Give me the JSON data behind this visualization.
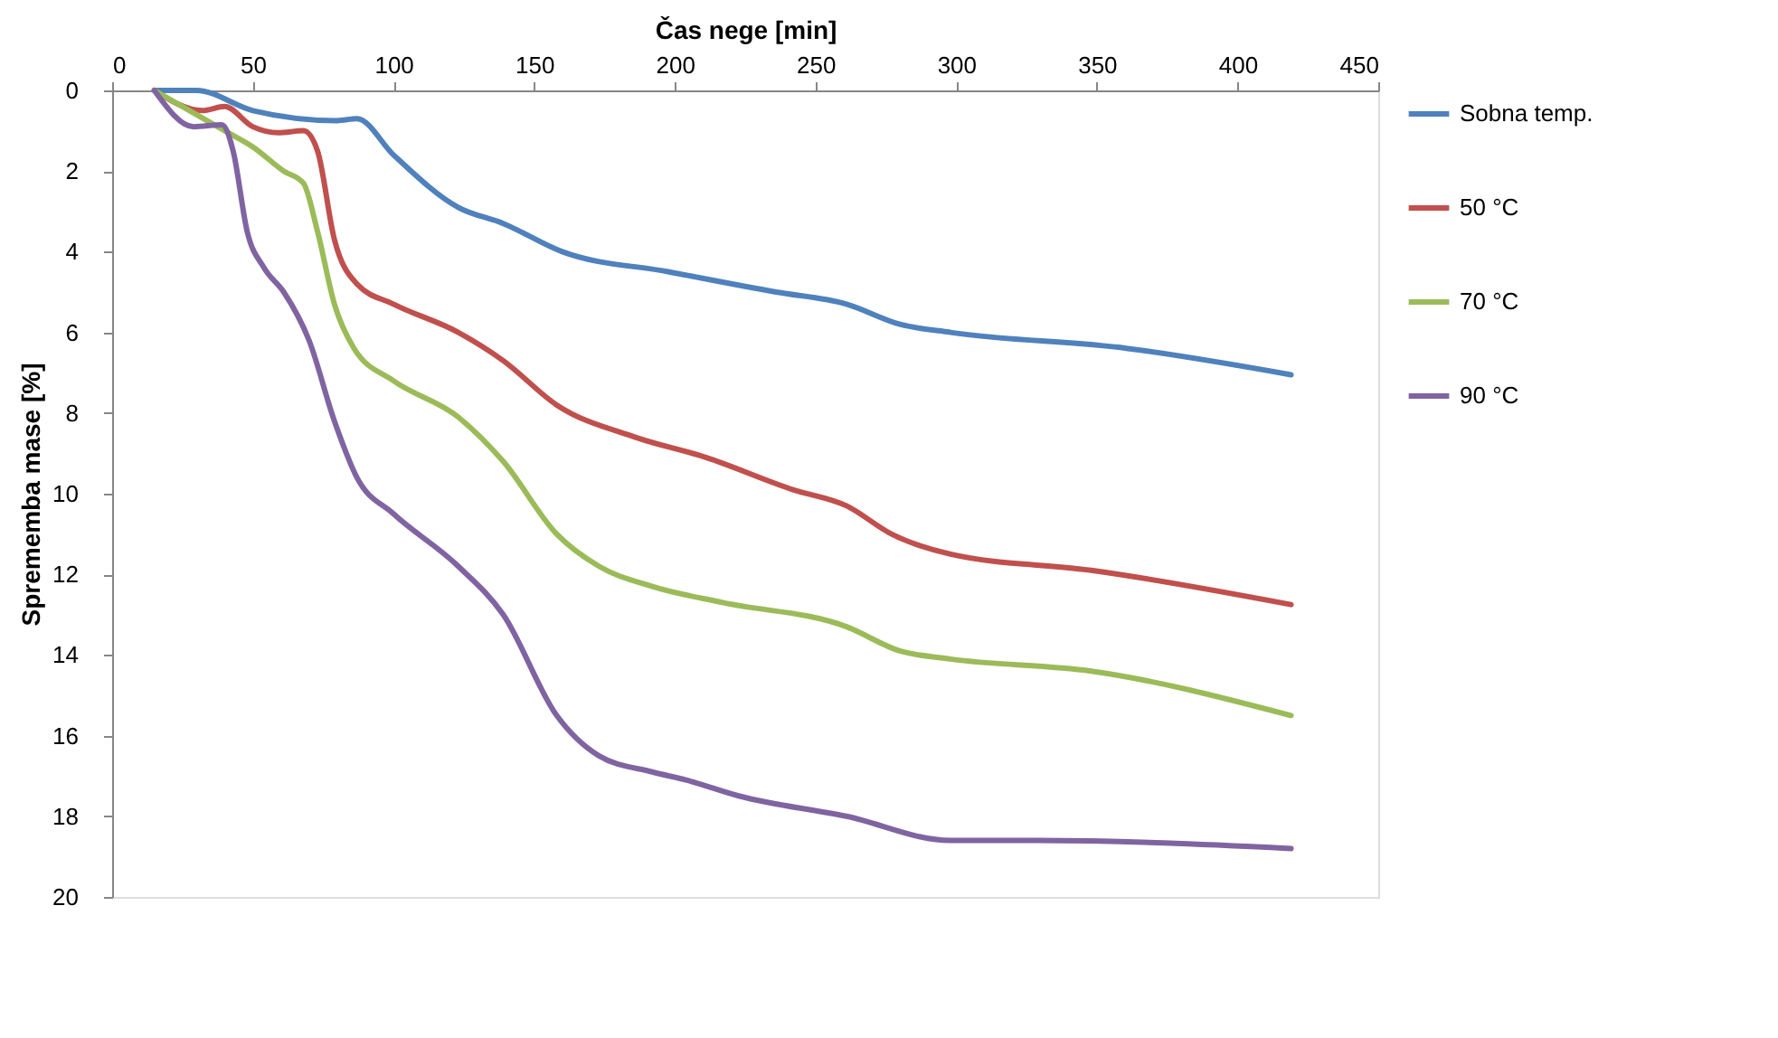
{
  "chart_data": {
    "type": "line",
    "xlabel": "Čas nege [min]",
    "ylabel": "Sprememba mase [%]",
    "xlim": [
      0,
      450
    ],
    "xticks": [
      0,
      50,
      100,
      150,
      200,
      250,
      300,
      350,
      400,
      450
    ],
    "ylim": [
      20,
      0
    ],
    "yticks": [
      0,
      2,
      4,
      6,
      8,
      10,
      12,
      14,
      16,
      18,
      20
    ],
    "grid": false,
    "legend": "right",
    "marker": "none",
    "line_style": "solid",
    "series": [
      {
        "name": "Sobna temp.",
        "color": "#4f81bd",
        "x": [
          15,
          30,
          50,
          80,
          87,
          100,
          123,
          139,
          160,
          198,
          236,
          261,
          280,
          298,
          361,
          419
        ],
        "values": [
          0,
          0,
          0.5,
          0.75,
          0.7,
          1.6,
          2.9,
          3.3,
          4.0,
          4.5,
          5.0,
          5.3,
          5.8,
          6.0,
          6.4,
          7.05
        ]
      },
      {
        "name": "50 °C",
        "color": "#c0504d",
        "x": [
          15,
          32,
          40,
          50,
          59,
          68,
          73,
          79,
          87,
          100,
          123,
          139,
          158,
          186,
          211,
          242,
          261,
          277,
          298,
          348,
          419
        ],
        "values": [
          0,
          0.5,
          0.4,
          0.9,
          1.05,
          1.0,
          1.5,
          3.7,
          4.8,
          5.3,
          6.0,
          6.7,
          7.8,
          8.6,
          9.1,
          9.9,
          10.3,
          11.0,
          11.5,
          11.9,
          12.75
        ]
      },
      {
        "name": "70 °C",
        "color": "#9bbb59",
        "x": [
          15,
          40,
          50,
          61,
          68,
          73,
          79,
          86,
          100,
          123,
          139,
          158,
          173,
          192,
          217,
          261,
          280,
          298,
          348,
          419
        ],
        "values": [
          0,
          1.0,
          1.4,
          2.0,
          2.3,
          3.5,
          5.3,
          6.4,
          7.2,
          8.1,
          9.2,
          11.0,
          11.8,
          12.3,
          12.7,
          13.3,
          13.9,
          14.1,
          14.4,
          15.5
        ]
      },
      {
        "name": "90 °C",
        "color": "#8064a2",
        "x": [
          15,
          29,
          39,
          43,
          48,
          54,
          61,
          70,
          79,
          87,
          100,
          123,
          139,
          158,
          173,
          192,
          204,
          223,
          261,
          298,
          329,
          419
        ],
        "values": [
          0,
          0.9,
          0.85,
          1.5,
          3.5,
          4.4,
          5.0,
          6.2,
          8.2,
          9.6,
          10.5,
          11.8,
          13.0,
          15.5,
          16.5,
          16.9,
          17.1,
          17.5,
          18.0,
          18.6,
          18.6,
          18.8
        ]
      }
    ]
  }
}
